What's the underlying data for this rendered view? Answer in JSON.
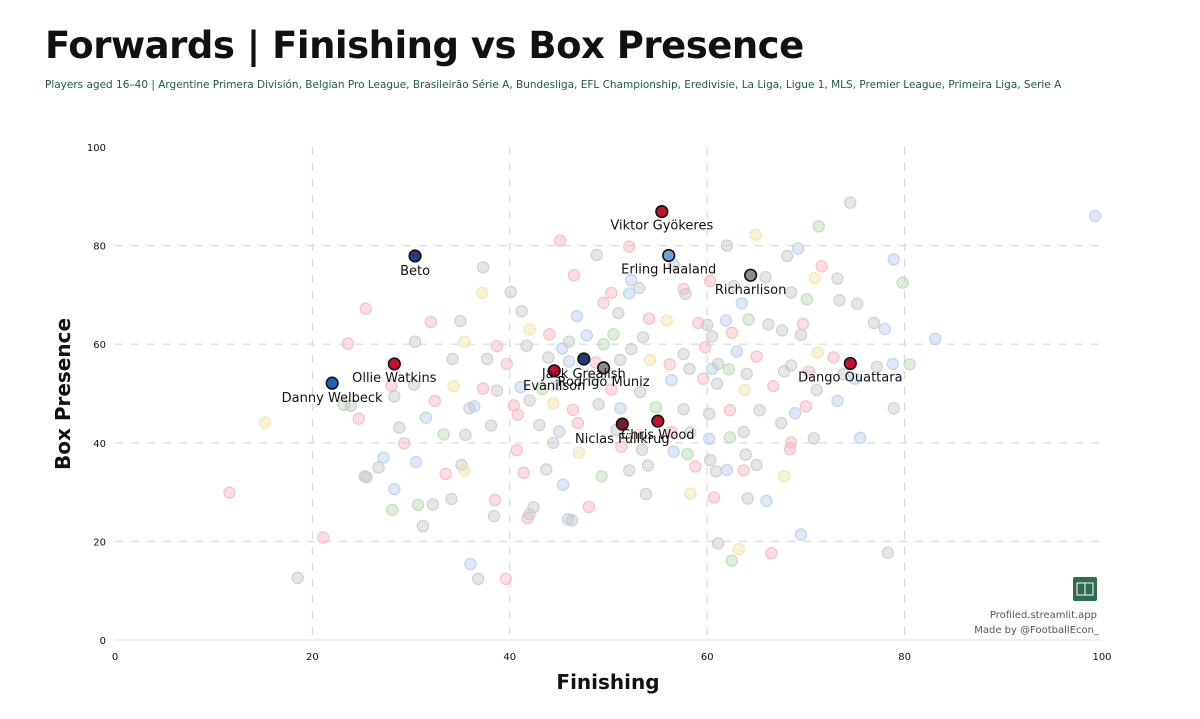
{
  "title": "Forwards | Finishing vs Box Presence",
  "subtitle": "Players aged 16–40 | Argentine Primera División, Belgian Pro League, Brasileirão Série A, Bundesliga, EFL Championship, Eredivisie, La Liga, Ligue 1, MLS, Premier League, Primeira Liga, Serie A",
  "credits": {
    "site": "Profiled.streamlit.app",
    "author": "Made by @FootballEcon_",
    "logo_icon": "pitch-logo-icon"
  },
  "colors": {
    "background": "#ffffff",
    "grid": "#d9d9d9",
    "red": "#c8102e",
    "navy": "#1e3f7a",
    "blue": "#1565c0",
    "sky": "#6ca3dc",
    "grey": "#8c8c8c",
    "maroon": "#7a1c2c",
    "bg_grey": "#c8c8c8",
    "bg_pink": "#f4b6be",
    "bg_blue": "#b7cdea",
    "bg_yellow": "#efe3a6",
    "bg_green": "#b8d8b0",
    "logo": "#2e6b4f"
  },
  "chart_data": {
    "type": "scatter",
    "xlabel": "Finishing",
    "ylabel": "Box Presence",
    "xlim": [
      0,
      100
    ],
    "ylim": [
      0,
      100
    ],
    "xticks": [
      0,
      20,
      40,
      60,
      80,
      100
    ],
    "yticks": [
      0,
      20,
      40,
      60,
      80,
      100
    ],
    "grid": "dashed",
    "highlighted": [
      {
        "name": "Viktor Gyökeres",
        "x": 55.4,
        "y": 86.9,
        "color": "red"
      },
      {
        "name": "Erling Haaland",
        "x": 56.1,
        "y": 78.0,
        "color": "sky"
      },
      {
        "name": "Beto",
        "x": 30.4,
        "y": 77.9,
        "color": "navy"
      },
      {
        "name": "Richarlison",
        "x": 64.4,
        "y": 74.0,
        "color": "grey"
      },
      {
        "name": "Ollie Watkins",
        "x": 28.3,
        "y": 56.0,
        "color": "red"
      },
      {
        "name": "Dango Ouattara",
        "x": 74.5,
        "y": 56.1,
        "color": "red"
      },
      {
        "name": "Jack Grealish",
        "x": 47.5,
        "y": 57.0,
        "color": "navy"
      },
      {
        "name": "Rodrigo Muniz",
        "x": 49.5,
        "y": 55.2,
        "color": "grey"
      },
      {
        "name": "Evanilson",
        "x": 44.5,
        "y": 54.6,
        "color": "red"
      },
      {
        "name": "Danny Welbeck",
        "x": 22.0,
        "y": 52.1,
        "color": "blue"
      },
      {
        "name": "Chris Wood",
        "x": 55.0,
        "y": 44.4,
        "color": "red"
      },
      {
        "name": "Niclas Füllkrug",
        "x": 51.4,
        "y": 43.8,
        "color": "maroon"
      }
    ],
    "background_points": [
      [
        74.5,
        88.7
      ],
      [
        99.3,
        86.0
      ],
      [
        45.1,
        81.0
      ],
      [
        62.0,
        80.0
      ],
      [
        64.9,
        82.2
      ],
      [
        52.1,
        79.8
      ],
      [
        68.1,
        77.9
      ],
      [
        69.2,
        79.4
      ],
      [
        71.3,
        83.9
      ],
      [
        48.8,
        78.1
      ],
      [
        37.3,
        75.6
      ],
      [
        46.5,
        74.0
      ],
      [
        56.6,
        76.1
      ],
      [
        52.3,
        73.0
      ],
      [
        60.3,
        72.8
      ],
      [
        65.9,
        73.6
      ],
      [
        70.9,
        73.4
      ],
      [
        71.6,
        75.8
      ],
      [
        73.2,
        73.3
      ],
      [
        78.9,
        77.2
      ],
      [
        79.8,
        72.5
      ],
      [
        68.5,
        70.5
      ],
      [
        62.7,
        71.8
      ],
      [
        57.6,
        71.2
      ],
      [
        53.1,
        71.4
      ],
      [
        52.1,
        70.3
      ],
      [
        50.3,
        70.4
      ],
      [
        40.1,
        70.6
      ],
      [
        37.2,
        70.4
      ],
      [
        54.1,
        65.2
      ],
      [
        57.8,
        70.2
      ],
      [
        63.5,
        68.3
      ],
      [
        70.1,
        69.1
      ],
      [
        73.4,
        68.9
      ],
      [
        75.2,
        68.2
      ],
      [
        25.4,
        67.2
      ],
      [
        41.2,
        66.7
      ],
      [
        46.8,
        65.7
      ],
      [
        49.5,
        68.4
      ],
      [
        51.0,
        66.3
      ],
      [
        55.9,
        64.8
      ],
      [
        59.1,
        64.3
      ],
      [
        60.0,
        63.9
      ],
      [
        61.9,
        64.8
      ],
      [
        64.2,
        65.0
      ],
      [
        66.2,
        64.0
      ],
      [
        67.6,
        62.8
      ],
      [
        69.7,
        64.1
      ],
      [
        76.9,
        64.3
      ],
      [
        78.0,
        63.1
      ],
      [
        32.0,
        64.5
      ],
      [
        35.0,
        64.7
      ],
      [
        42.0,
        63.0
      ],
      [
        44.0,
        62.0
      ],
      [
        46.0,
        60.5
      ],
      [
        47.8,
        61.8
      ],
      [
        50.5,
        62.0
      ],
      [
        53.5,
        61.4
      ],
      [
        60.5,
        61.6
      ],
      [
        62.5,
        62.3
      ],
      [
        69.5,
        61.9
      ],
      [
        83.1,
        61.1
      ],
      [
        23.6,
        60.1
      ],
      [
        30.4,
        60.5
      ],
      [
        35.4,
        60.5
      ],
      [
        38.7,
        59.6
      ],
      [
        41.7,
        59.7
      ],
      [
        45.3,
        59.1
      ],
      [
        49.5,
        60.0
      ],
      [
        52.3,
        59.0
      ],
      [
        57.6,
        58.0
      ],
      [
        59.8,
        59.4
      ],
      [
        61.1,
        56.0
      ],
      [
        63.0,
        58.5
      ],
      [
        65.0,
        57.5
      ],
      [
        68.5,
        55.7
      ],
      [
        71.2,
        58.3
      ],
      [
        72.8,
        57.3
      ],
      [
        77.2,
        55.4
      ],
      [
        78.8,
        56.0
      ],
      [
        80.5,
        55.9
      ],
      [
        34.2,
        57.0
      ],
      [
        37.7,
        57.0
      ],
      [
        39.7,
        56.0
      ],
      [
        43.9,
        57.3
      ],
      [
        46.0,
        56.5
      ],
      [
        48.7,
        56.3
      ],
      [
        51.2,
        56.8
      ],
      [
        54.2,
        56.8
      ],
      [
        56.2,
        55.9
      ],
      [
        58.2,
        55.0
      ],
      [
        60.5,
        55.0
      ],
      [
        62.2,
        54.9
      ],
      [
        64.0,
        54.0
      ],
      [
        67.8,
        54.5
      ],
      [
        70.3,
        54.4
      ],
      [
        73.8,
        53.9
      ],
      [
        75.0,
        53.0
      ],
      [
        28.0,
        51.6
      ],
      [
        30.3,
        51.8
      ],
      [
        34.3,
        51.5
      ],
      [
        37.3,
        51.0
      ],
      [
        38.7,
        50.6
      ],
      [
        41.1,
        51.3
      ],
      [
        43.3,
        50.9
      ],
      [
        45.0,
        51.8
      ],
      [
        48.5,
        52.9
      ],
      [
        50.3,
        50.8
      ],
      [
        53.2,
        50.3
      ],
      [
        56.4,
        52.7
      ],
      [
        59.6,
        53.0
      ],
      [
        61.0,
        52.0
      ],
      [
        63.8,
        50.7
      ],
      [
        66.7,
        51.5
      ],
      [
        71.1,
        50.7
      ],
      [
        73.2,
        48.5
      ],
      [
        23.2,
        47.7
      ],
      [
        23.9,
        47.5
      ],
      [
        28.3,
        49.4
      ],
      [
        32.4,
        48.5
      ],
      [
        35.9,
        47.0
      ],
      [
        36.4,
        47.4
      ],
      [
        40.4,
        47.6
      ],
      [
        42.0,
        48.6
      ],
      [
        44.4,
        48.0
      ],
      [
        46.4,
        46.7
      ],
      [
        49.0,
        47.8
      ],
      [
        51.2,
        47.0
      ],
      [
        54.8,
        47.2
      ],
      [
        57.6,
        46.8
      ],
      [
        60.2,
        45.9
      ],
      [
        62.3,
        46.6
      ],
      [
        65.3,
        46.6
      ],
      [
        68.9,
        46.0
      ],
      [
        70.0,
        47.4
      ],
      [
        78.9,
        47.0
      ],
      [
        15.2,
        44.1
      ],
      [
        24.7,
        44.9
      ],
      [
        28.8,
        43.1
      ],
      [
        31.5,
        45.1
      ],
      [
        33.3,
        41.7
      ],
      [
        35.5,
        41.6
      ],
      [
        38.1,
        43.5
      ],
      [
        40.8,
        45.7
      ],
      [
        43.0,
        43.6
      ],
      [
        45.0,
        42.3
      ],
      [
        46.9,
        44.0
      ],
      [
        50.8,
        42.6
      ],
      [
        53.0,
        41.6
      ],
      [
        56.4,
        42.2
      ],
      [
        58.3,
        42.1
      ],
      [
        60.2,
        40.8
      ],
      [
        62.3,
        41.1
      ],
      [
        63.7,
        42.2
      ],
      [
        67.5,
        44.0
      ],
      [
        68.5,
        40.1
      ],
      [
        70.8,
        40.9
      ],
      [
        75.5,
        41.0
      ],
      [
        40.7,
        38.5
      ],
      [
        44.4,
        40.0
      ],
      [
        47.0,
        38.0
      ],
      [
        51.3,
        39.2
      ],
      [
        53.4,
        38.6
      ],
      [
        56.6,
        38.2
      ],
      [
        58.0,
        37.7
      ],
      [
        60.3,
        36.5
      ],
      [
        63.9,
        37.6
      ],
      [
        68.4,
        38.7
      ],
      [
        26.7,
        35.0
      ],
      [
        30.5,
        36.1
      ],
      [
        33.5,
        33.7
      ],
      [
        35.1,
        35.5
      ],
      [
        35.4,
        34.4
      ],
      [
        41.4,
        33.9
      ],
      [
        43.7,
        34.6
      ],
      [
        45.4,
        31.5
      ],
      [
        49.3,
        33.2
      ],
      [
        52.1,
        34.4
      ],
      [
        54.0,
        35.4
      ],
      [
        58.8,
        35.2
      ],
      [
        60.9,
        34.2
      ],
      [
        62.0,
        34.5
      ],
      [
        63.7,
        34.4
      ],
      [
        65.0,
        35.5
      ],
      [
        67.8,
        33.2
      ],
      [
        11.6,
        29.9
      ],
      [
        25.3,
        33.2
      ],
      [
        28.3,
        30.6
      ],
      [
        30.7,
        27.4
      ],
      [
        32.2,
        27.5
      ],
      [
        34.1,
        28.6
      ],
      [
        38.5,
        28.4
      ],
      [
        42.4,
        26.9
      ],
      [
        45.9,
        24.5
      ],
      [
        48.0,
        27.0
      ],
      [
        53.8,
        29.6
      ],
      [
        58.3,
        29.7
      ],
      [
        60.7,
        28.9
      ],
      [
        64.1,
        28.7
      ],
      [
        66.0,
        28.2
      ],
      [
        28.1,
        26.4
      ],
      [
        31.2,
        23.1
      ],
      [
        38.4,
        25.1
      ],
      [
        41.8,
        24.7
      ],
      [
        46.3,
        24.3
      ],
      [
        69.5,
        21.4
      ],
      [
        21.1,
        20.8
      ],
      [
        61.1,
        19.6
      ],
      [
        63.2,
        18.4
      ],
      [
        66.5,
        17.6
      ],
      [
        78.3,
        17.7
      ],
      [
        36.0,
        15.4
      ],
      [
        62.5,
        16.1
      ],
      [
        18.5,
        12.6
      ],
      [
        36.8,
        12.4
      ],
      [
        39.6,
        12.4
      ],
      [
        42.0,
        25.5
      ],
      [
        27.2,
        37.0
      ],
      [
        29.3,
        39.9
      ],
      [
        25.5,
        33.0
      ]
    ]
  }
}
